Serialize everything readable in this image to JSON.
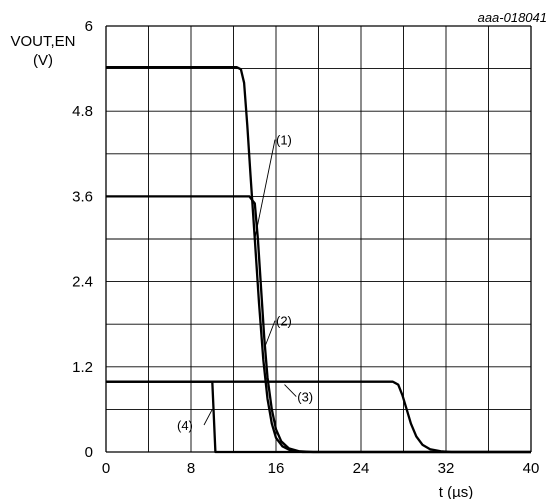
{
  "figure_code": "aaa-018041",
  "chart_data": {
    "type": "line",
    "xlabel": "t (µs)",
    "ylabel_line1": "VOUT,EN",
    "ylabel_line2": "(V)",
    "xlim": [
      0,
      40
    ],
    "ylim": [
      0,
      6
    ],
    "x_ticks": [
      "0",
      "8",
      "16",
      "24",
      "32",
      "40"
    ],
    "y_ticks": [
      "0",
      "1.2",
      "2.4",
      "3.6",
      "4.8",
      "6"
    ],
    "grid": true,
    "series": [
      {
        "name": "(1)",
        "label_x": 16.0,
        "label_y": 4.4,
        "points": [
          [
            0,
            5.42
          ],
          [
            12.3,
            5.42
          ],
          [
            12.7,
            5.39
          ],
          [
            13.0,
            5.2
          ],
          [
            13.3,
            4.6
          ],
          [
            13.6,
            3.9
          ],
          [
            14.0,
            3.0
          ],
          [
            14.4,
            2.1
          ],
          [
            14.8,
            1.3
          ],
          [
            15.2,
            0.75
          ],
          [
            15.6,
            0.4
          ],
          [
            16.0,
            0.2
          ],
          [
            16.6,
            0.08
          ],
          [
            17.4,
            0.02
          ],
          [
            18.5,
            0
          ],
          [
            40,
            0
          ]
        ]
      },
      {
        "name": "(2)",
        "label_x": 16.0,
        "label_y": 1.85,
        "points": [
          [
            0,
            3.6
          ],
          [
            13.5,
            3.6
          ],
          [
            14.0,
            3.5
          ],
          [
            14.3,
            3.0
          ],
          [
            14.6,
            2.3
          ],
          [
            14.9,
            1.6
          ],
          [
            15.2,
            1.05
          ],
          [
            15.6,
            0.6
          ],
          [
            16.0,
            0.32
          ],
          [
            16.5,
            0.15
          ],
          [
            17.2,
            0.05
          ],
          [
            18.2,
            0.01
          ],
          [
            19.5,
            0
          ],
          [
            40,
            0
          ]
        ]
      },
      {
        "name": "(3)",
        "label_x": 18.0,
        "label_y": 0.78,
        "points": [
          [
            0,
            0.99
          ],
          [
            27.0,
            0.99
          ],
          [
            27.5,
            0.95
          ],
          [
            27.9,
            0.8
          ],
          [
            28.3,
            0.6
          ],
          [
            28.7,
            0.4
          ],
          [
            29.2,
            0.22
          ],
          [
            29.8,
            0.1
          ],
          [
            30.5,
            0.04
          ],
          [
            31.5,
            0.01
          ],
          [
            32.5,
            0
          ],
          [
            40,
            0
          ]
        ]
      },
      {
        "name": "(4)",
        "label_x": 8.0,
        "label_y": 0.38,
        "points": [
          [
            0,
            0.99
          ],
          [
            10.0,
            0.99
          ],
          [
            10.3,
            0
          ],
          [
            40,
            0
          ]
        ]
      }
    ]
  }
}
